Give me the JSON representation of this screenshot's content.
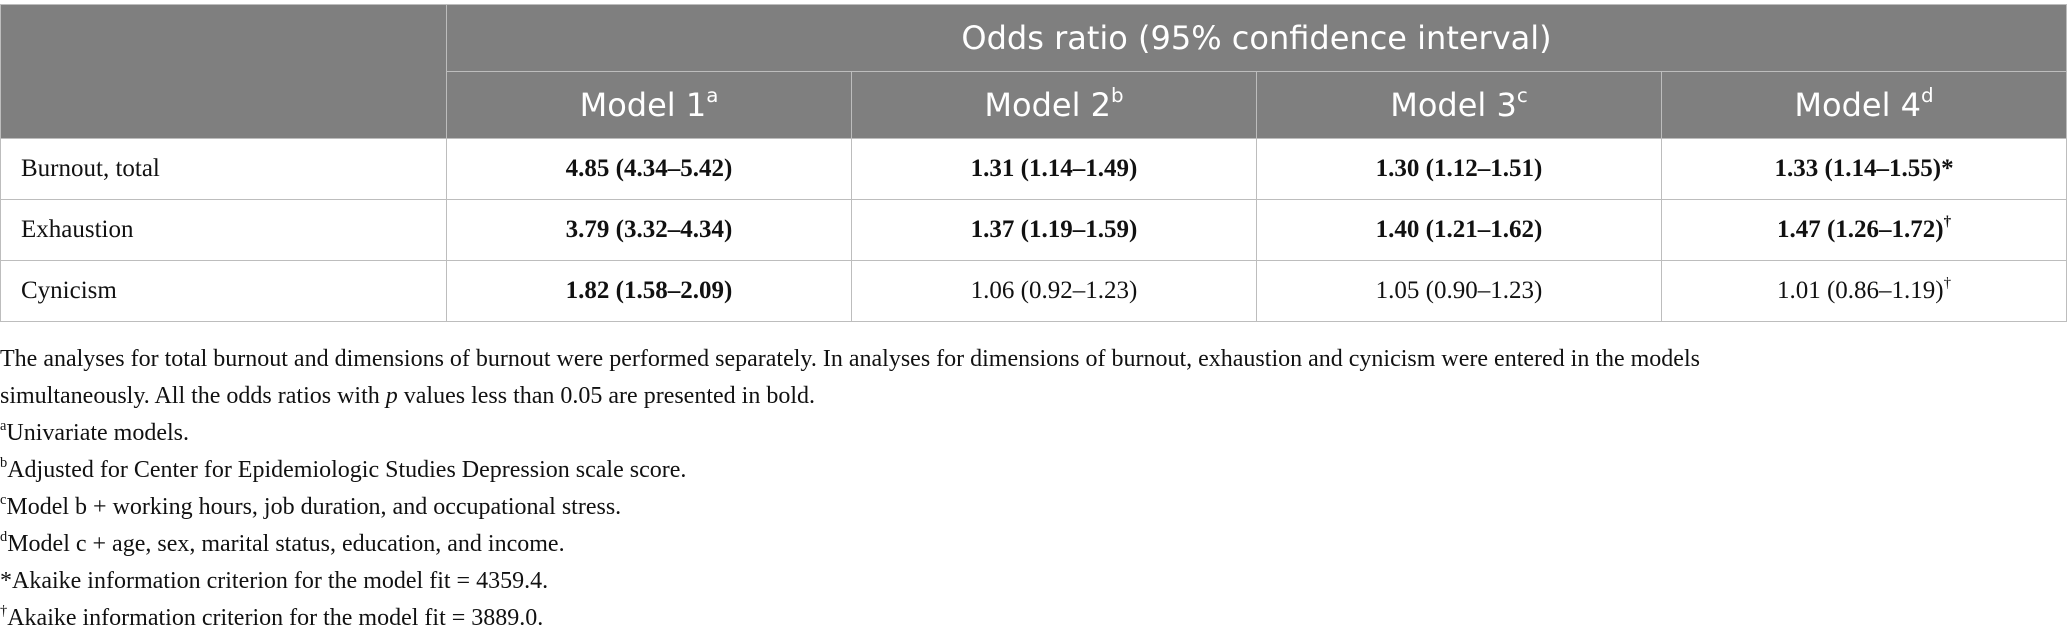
{
  "table": {
    "group_header": "Odds ratio (95% confidence interval)",
    "model_headers": [
      {
        "label": "Model 1",
        "sup": "a"
      },
      {
        "label": "Model 2",
        "sup": "b"
      },
      {
        "label": "Model 3",
        "sup": "c"
      },
      {
        "label": "Model 4",
        "sup": "d"
      }
    ],
    "rows": [
      {
        "label": "Burnout, total",
        "cells": [
          {
            "value": "4.85 (4.34–5.42)",
            "bold": true,
            "mark": ""
          },
          {
            "value": "1.31 (1.14–1.49)",
            "bold": true,
            "mark": ""
          },
          {
            "value": "1.30 (1.12–1.51)",
            "bold": true,
            "mark": ""
          },
          {
            "value": "1.33 (1.14–1.55)*",
            "bold": true,
            "mark": ""
          }
        ]
      },
      {
        "label": "Exhaustion",
        "cells": [
          {
            "value": "3.79 (3.32–4.34)",
            "bold": true,
            "mark": ""
          },
          {
            "value": "1.37 (1.19–1.59)",
            "bold": true,
            "mark": ""
          },
          {
            "value": "1.40 (1.21–1.62)",
            "bold": true,
            "mark": ""
          },
          {
            "value": "1.47 (1.26–1.72)",
            "bold": true,
            "mark": "†"
          }
        ]
      },
      {
        "label": "Cynicism",
        "cells": [
          {
            "value": "1.82 (1.58–2.09)",
            "bold": true,
            "mark": ""
          },
          {
            "value": "1.06 (0.92–1.23)",
            "bold": false,
            "mark": ""
          },
          {
            "value": "1.05 (0.90–1.23)",
            "bold": false,
            "mark": ""
          },
          {
            "value": "1.01 (0.86–1.19)",
            "bold": false,
            "mark": "†"
          }
        ]
      }
    ]
  },
  "notes": {
    "intro_part1": "The analyses for total burnout and dimensions of burnout were performed separately. In analyses for dimensions of burnout, exhaustion and cynicism were entered in the models",
    "intro_part2_before_p": "simultaneously. All the odds ratios with ",
    "intro_p": "p",
    "intro_part2_after_p": " values less than 0.05 are presented in bold.",
    "footnotes": [
      {
        "mark": "a",
        "text": "Univariate models."
      },
      {
        "mark": "b",
        "text": "Adjusted for Center for Epidemiologic Studies Depression scale score."
      },
      {
        "mark": "c",
        "text": "Model b + working hours, job duration, and occupational stress."
      },
      {
        "mark": "d",
        "text": "Model c + age, sex, marital status, education, and income."
      },
      {
        "mark": "*",
        "text": "Akaike information criterion for the model fit = 4359.4."
      },
      {
        "mark": "†",
        "text": "Akaike information criterion for the model fit = 3889.0."
      }
    ]
  }
}
